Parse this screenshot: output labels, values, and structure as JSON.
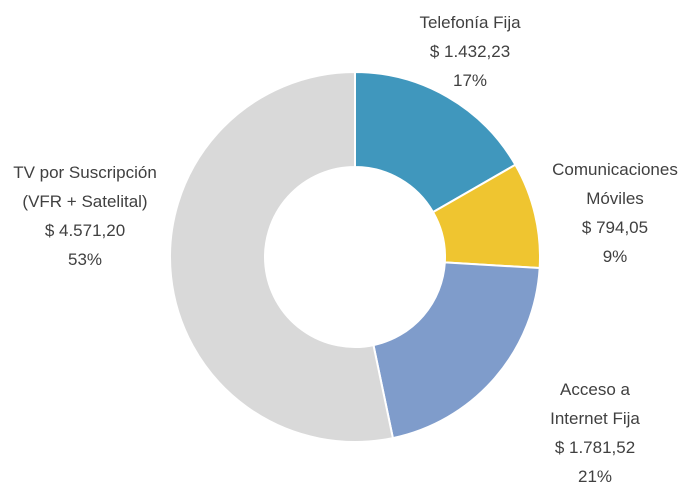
{
  "chart_data": {
    "type": "donut",
    "categories": [
      "Telefonía Fija",
      "Comunicaciones Móviles",
      "Acceso a Internet Fija",
      "TV por Suscripción (VFR + Satelital)"
    ],
    "values": [
      1432.23,
      794.05,
      1781.52,
      4571.2
    ],
    "value_labels": [
      "$ 1.432,23",
      "$ 794,05",
      "$ 1.781,52",
      "$ 4.571,20"
    ],
    "percent_labels": [
      "17%",
      "9%",
      "21%",
      "53%"
    ],
    "colors": [
      "#4097bd",
      "#efc530",
      "#7f9ccb",
      "#d9d9d9"
    ]
  }
}
